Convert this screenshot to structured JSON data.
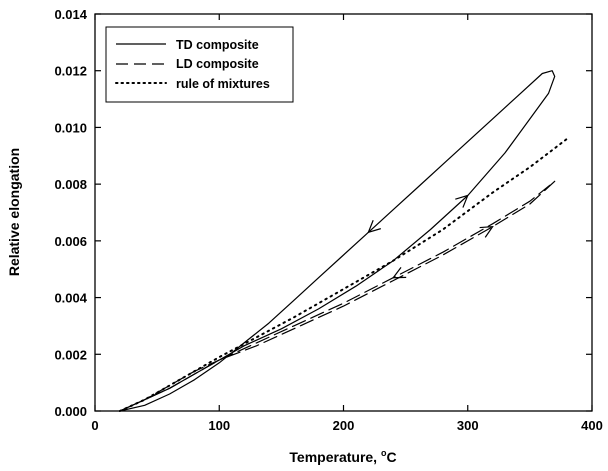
{
  "chart_data": {
    "type": "line",
    "title": "",
    "xlabel": "Temperature, °C",
    "xlabel_main": "Temperature, ",
    "xlabel_sup": "o",
    "xlabel_unit": "C",
    "ylabel": "Relative elongation",
    "xlim": [
      0,
      400
    ],
    "ylim": [
      0,
      0.014
    ],
    "xticks": [
      0,
      100,
      200,
      300,
      400
    ],
    "xtick_labels": [
      "0",
      "100",
      "200",
      "300",
      "400"
    ],
    "yticks": [
      0,
      0.002,
      0.004,
      0.006,
      0.008,
      0.01,
      0.012,
      0.014
    ],
    "ytick_labels": [
      "0.000",
      "0.002",
      "0.004",
      "0.006",
      "0.008",
      "0.010",
      "0.012",
      "0.014"
    ],
    "grid": false,
    "legend_position": "top-left",
    "series": [
      {
        "name": "TD composite",
        "style": "solid",
        "color": "#000000",
        "x": [
          20,
          40,
          60,
          80,
          100,
          120,
          150,
          180,
          210,
          240,
          270,
          300,
          330,
          350,
          365,
          370,
          368,
          360,
          340,
          320,
          300,
          280,
          260,
          240,
          220,
          200,
          180,
          160,
          140,
          120,
          100,
          80,
          60,
          40,
          20
        ],
        "y": [
          0.0,
          0.0004,
          0.0008,
          0.0013,
          0.0018,
          0.0023,
          0.0029,
          0.0036,
          0.0044,
          0.0053,
          0.0064,
          0.0076,
          0.0091,
          0.0103,
          0.0112,
          0.0118,
          0.012,
          0.0119,
          0.0111,
          0.0103,
          0.0095,
          0.0087,
          0.0079,
          0.0071,
          0.0063,
          0.0055,
          0.0047,
          0.0039,
          0.0031,
          0.0024,
          0.0017,
          0.0011,
          0.0006,
          0.0002,
          0.0
        ]
      },
      {
        "name": "LD composite",
        "style": "dashed",
        "color": "#000000",
        "x": [
          20,
          40,
          60,
          80,
          100,
          130,
          160,
          200,
          240,
          280,
          320,
          350,
          370,
          350,
          320,
          280,
          240,
          200,
          160,
          130,
          100,
          80,
          60,
          40,
          20
        ],
        "y": [
          0.0,
          0.0004,
          0.0009,
          0.0014,
          0.0018,
          0.0023,
          0.0029,
          0.0037,
          0.0046,
          0.0055,
          0.0065,
          0.0073,
          0.0081,
          0.0074,
          0.0066,
          0.0056,
          0.0047,
          0.0038,
          0.003,
          0.0024,
          0.0018,
          0.0013,
          0.0008,
          0.0004,
          0.0
        ]
      },
      {
        "name": "rule of mixtures",
        "style": "dotted",
        "color": "#000000",
        "x": [
          20,
          40,
          60,
          80,
          100,
          130,
          160,
          200,
          240,
          280,
          320,
          350,
          380
        ],
        "y": [
          0.0,
          0.0004,
          0.0009,
          0.0014,
          0.0019,
          0.0026,
          0.0033,
          0.0043,
          0.0053,
          0.0064,
          0.0077,
          0.0086,
          0.0096
        ]
      }
    ]
  }
}
